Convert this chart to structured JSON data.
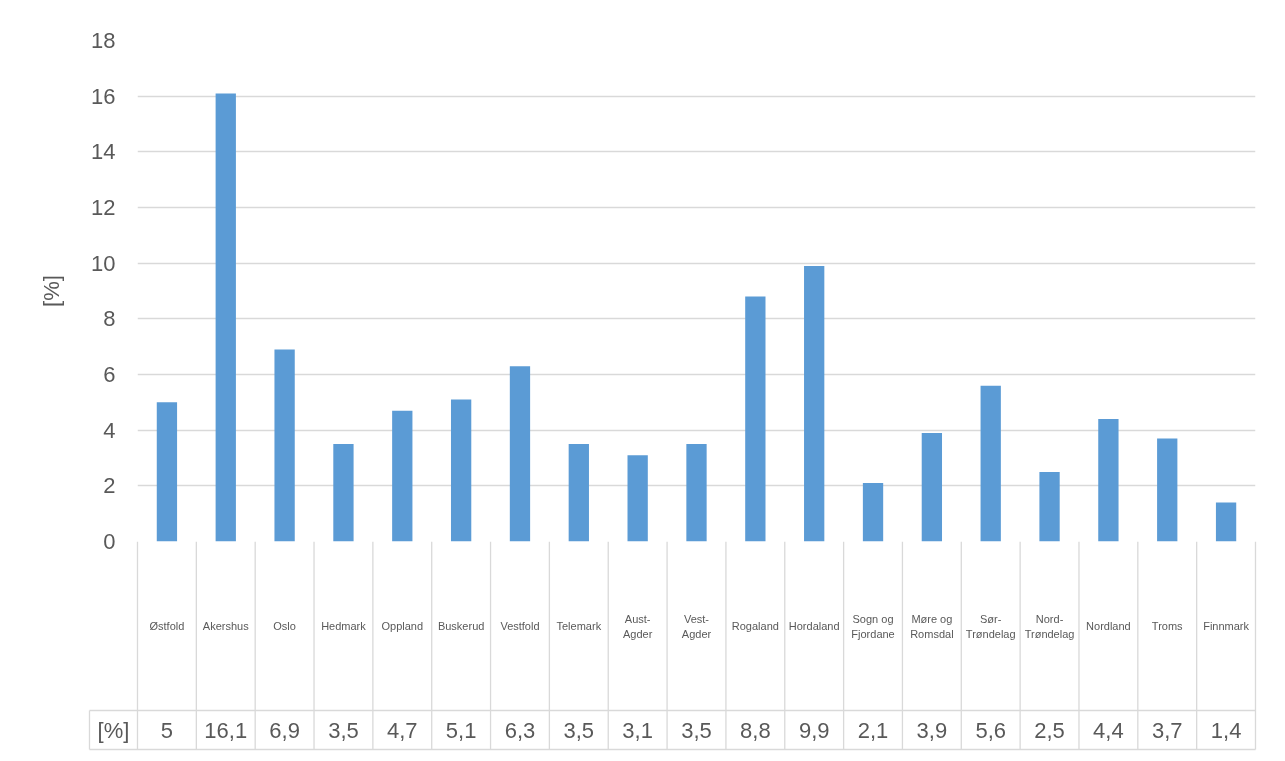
{
  "chart_data": {
    "type": "bar",
    "ylabel": "[%]",
    "categories": [
      "Østfold",
      "Akershus",
      "Oslo",
      "Hedmark",
      "Oppland",
      "Buskerud",
      "Vestfold",
      "Telemark",
      "Aust-Agder",
      "Vest-Agder",
      "Rogaland",
      "Hordaland",
      "Sogn og Fjordane",
      "Møre og Romsdal",
      "Sør-Trøndelag",
      "Nord-Trøndelag",
      "Nordland",
      "Troms",
      "Finnmark"
    ],
    "values": [
      5,
      16.1,
      6.9,
      3.5,
      4.7,
      5.1,
      6.3,
      3.5,
      3.1,
      3.5,
      8.8,
      9.9,
      2.1,
      3.9,
      5.6,
      2.5,
      4.4,
      3.7,
      1.4
    ],
    "value_labels": [
      "5",
      "16,1",
      "6,9",
      "3,5",
      "4,7",
      "5,1",
      "6,3",
      "3,5",
      "3,1",
      "3,5",
      "8,8",
      "9,9",
      "2,1",
      "3,9",
      "5,6",
      "2,5",
      "4,4",
      "3,7",
      "1,4"
    ],
    "color": "#5b9bd5",
    "ylim": [
      0,
      18
    ],
    "yticks": [
      0,
      2,
      4,
      6,
      8,
      10,
      12,
      14,
      16,
      18
    ],
    "grid": "y",
    "annotations": [
      "[%]"
    ]
  }
}
